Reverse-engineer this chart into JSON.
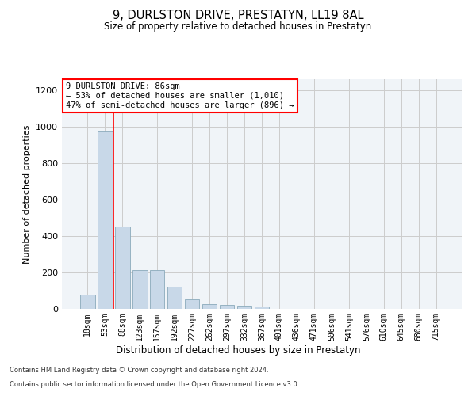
{
  "title": "9, DURLSTON DRIVE, PRESTATYN, LL19 8AL",
  "subtitle": "Size of property relative to detached houses in Prestatyn",
  "xlabel": "Distribution of detached houses by size in Prestatyn",
  "ylabel": "Number of detached properties",
  "bar_labels": [
    "18sqm",
    "53sqm",
    "88sqm",
    "123sqm",
    "157sqm",
    "192sqm",
    "227sqm",
    "262sqm",
    "297sqm",
    "332sqm",
    "367sqm",
    "401sqm",
    "436sqm",
    "471sqm",
    "506sqm",
    "541sqm",
    "576sqm",
    "610sqm",
    "645sqm",
    "680sqm",
    "715sqm"
  ],
  "bar_values": [
    80,
    975,
    450,
    215,
    215,
    120,
    50,
    25,
    22,
    18,
    12,
    0,
    0,
    0,
    0,
    0,
    0,
    0,
    0,
    0,
    0
  ],
  "bar_color": "#c8d8e8",
  "bar_edge_color": "#8aaabb",
  "ylim": [
    0,
    1260
  ],
  "yticks": [
    0,
    200,
    400,
    600,
    800,
    1000,
    1200
  ],
  "property_line_x": 1.5,
  "annotation_title": "9 DURLSTON DRIVE: 86sqm",
  "annotation_line1": "← 53% of detached houses are smaller (1,010)",
  "annotation_line2": "47% of semi-detached houses are larger (896) →",
  "footer_line1": "Contains HM Land Registry data © Crown copyright and database right 2024.",
  "footer_line2": "Contains public sector information licensed under the Open Government Licence v3.0.",
  "grid_color": "#cccccc",
  "background_color": "#ffffff",
  "plot_bg_color": "#f0f4f8"
}
